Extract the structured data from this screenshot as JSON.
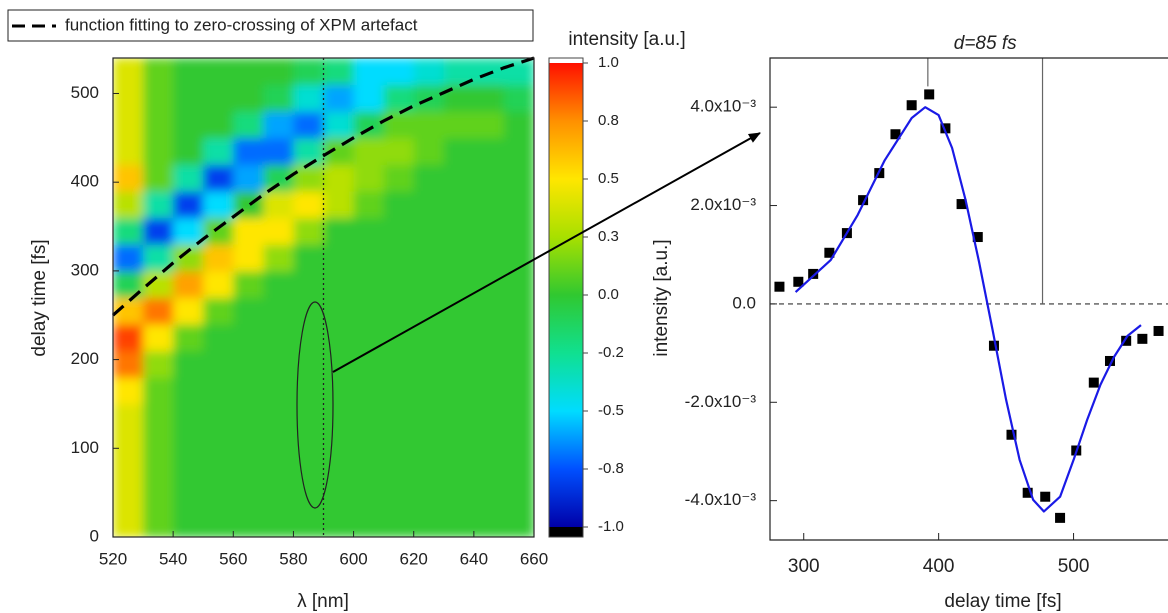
{
  "chart_data": [
    {
      "type": "heatmap",
      "xlabel": "λ [nm]",
      "ylabel": "delay time [fs]",
      "colorbar_title": "intensity [a.u.]",
      "xlim": [
        520,
        660
      ],
      "xticks": [
        520,
        540,
        560,
        580,
        600,
        620,
        640,
        660
      ],
      "ylim": [
        0,
        540
      ],
      "yticks": [
        0,
        100,
        200,
        300,
        400,
        500
      ],
      "xbins": [
        520,
        530,
        540,
        550,
        560,
        570,
        580,
        590,
        600,
        610,
        620,
        630,
        640,
        650,
        660
      ],
      "ybins": [
        0,
        30,
        60,
        90,
        120,
        150,
        180,
        210,
        240,
        270,
        300,
        330,
        360,
        390,
        420,
        450,
        480,
        510,
        540
      ],
      "z": [
        [
          0.4,
          0.1,
          0,
          0,
          0,
          0,
          0,
          0,
          0,
          0,
          0,
          0,
          0,
          0
        ],
        [
          0.4,
          0.1,
          0,
          0,
          0,
          0,
          0,
          0,
          0,
          0,
          0,
          0,
          0,
          0
        ],
        [
          0.4,
          0.1,
          0,
          0,
          0,
          0,
          0,
          0,
          0,
          0,
          0,
          0,
          0,
          0
        ],
        [
          0.4,
          0.1,
          0,
          0,
          0,
          0,
          0,
          0,
          0,
          0,
          0,
          0,
          0,
          0
        ],
        [
          0.4,
          0.1,
          0,
          0,
          0,
          0,
          0,
          0,
          0,
          0,
          0,
          0,
          0,
          0
        ],
        [
          0.5,
          0.1,
          0,
          0,
          0,
          0,
          0,
          0,
          0,
          0,
          0,
          0,
          0,
          0
        ],
        [
          0.8,
          0.2,
          0,
          0,
          0,
          0,
          0,
          0,
          0,
          0,
          0,
          0,
          0,
          0
        ],
        [
          0.9,
          0.5,
          0.1,
          0,
          0,
          0,
          0,
          0,
          0,
          0,
          0,
          0,
          0,
          0
        ],
        [
          0.6,
          0.8,
          0.5,
          0.1,
          0,
          0,
          0,
          0,
          0,
          0,
          0,
          0,
          0,
          0
        ],
        [
          -0.1,
          0.3,
          0.7,
          0.5,
          0.1,
          0,
          0,
          0,
          0,
          0,
          0,
          0,
          0,
          0
        ],
        [
          -0.7,
          -0.3,
          0.2,
          0.6,
          0.5,
          0.2,
          0,
          0,
          0,
          0,
          0,
          0,
          0,
          0
        ],
        [
          -0.2,
          -0.8,
          -0.5,
          0.1,
          0.5,
          0.5,
          0.2,
          0,
          0,
          0,
          0,
          0,
          0,
          0
        ],
        [
          0.3,
          -0.3,
          -0.8,
          -0.5,
          0,
          0.4,
          0.5,
          0.3,
          0.1,
          0,
          0,
          0,
          0,
          0
        ],
        [
          0.6,
          0.1,
          -0.3,
          -0.8,
          -0.6,
          -0.1,
          0.2,
          0.3,
          0.2,
          0.1,
          0,
          0,
          0,
          0
        ],
        [
          0.4,
          0.1,
          0,
          -0.3,
          -0.7,
          -0.7,
          -0.3,
          0.1,
          0.2,
          0.2,
          0.1,
          0,
          0,
          0
        ],
        [
          0.4,
          0.1,
          0,
          0,
          -0.2,
          -0.6,
          -0.7,
          -0.4,
          -0.1,
          0.1,
          0.1,
          0.1,
          0.1,
          0
        ],
        [
          0.4,
          0.1,
          0,
          0,
          0,
          -0.1,
          -0.4,
          -0.6,
          -0.5,
          -0.2,
          -0.1,
          0,
          0,
          -0.1
        ],
        [
          0.4,
          0.1,
          0,
          0,
          0,
          0,
          -0.1,
          -0.2,
          -0.5,
          -0.5,
          -0.4,
          -0.3,
          -0.3,
          -0.3
        ]
      ],
      "clim": [
        -1,
        1
      ],
      "colorscale": [
        {
          "value": -1,
          "color": "#0000a8"
        },
        {
          "value": -0.75,
          "color": "#0050ff"
        },
        {
          "value": -0.5,
          "color": "#00dcff"
        },
        {
          "value": -0.25,
          "color": "#10e090"
        },
        {
          "value": 0,
          "color": "#30c830"
        },
        {
          "value": 0.25,
          "color": "#a8e000"
        },
        {
          "value": 0.5,
          "color": "#ffe600"
        },
        {
          "value": 0.75,
          "color": "#ff9000"
        },
        {
          "value": 1,
          "color": "#ff1000"
        }
      ],
      "cticks": [
        {
          "value": 1,
          "label": "1.0"
        },
        {
          "value": 0.75,
          "label": "0.8"
        },
        {
          "value": 0.5,
          "label": "0.5"
        },
        {
          "value": 0.25,
          "label": "0.3"
        },
        {
          "value": 0,
          "label": "0.0"
        },
        {
          "value": -0.25,
          "label": "-0.2"
        },
        {
          "value": -0.5,
          "label": "-0.5"
        },
        {
          "value": -0.75,
          "label": "-0.8"
        },
        {
          "value": -1,
          "label": "-1.0"
        }
      ],
      "vline": 590,
      "series": [
        {
          "name": "function fitting to zero-crossing of XPM artefact",
          "color": "#000000",
          "style": "dashed",
          "x": [
            520,
            530,
            540,
            550,
            560,
            570,
            580,
            590,
            600,
            610,
            620,
            630,
            640,
            650,
            660
          ],
          "values": [
            250,
            280,
            309,
            336,
            361,
            386,
            409,
            430,
            450,
            469,
            486,
            501,
            516,
            529,
            540
          ]
        }
      ]
    },
    {
      "type": "scatter",
      "xlabel": "delay time [fs]",
      "ylabel": "intensity [a.u.]",
      "xlim": [
        275,
        570
      ],
      "xticks": [
        300,
        400,
        500
      ],
      "ylim": [
        -0.0048,
        0.005
      ],
      "yticks": [
        {
          "value": -0.004,
          "label": "-4.0x10⁻³"
        },
        {
          "value": -0.002,
          "label": "-2.0x10⁻³"
        },
        {
          "value": 0,
          "label": "0.0"
        },
        {
          "value": 0.002,
          "label": "2.0x10⁻³"
        },
        {
          "value": 0.004,
          "label": "4.0x10⁻³"
        }
      ],
      "hline": 0,
      "annotation": "d=85 fs",
      "bracket_x": [
        392,
        477
      ],
      "series": [
        {
          "marker": "square",
          "color": "#000000",
          "x": [
            282,
            296,
            307,
            319,
            332,
            344,
            356,
            368,
            380,
            393,
            405,
            417,
            429,
            441,
            454,
            466,
            479,
            490,
            502,
            515,
            527,
            539,
            551,
            563
          ],
          "values": [
            0.00035,
            0.00045,
            0.00061,
            0.00104,
            0.00144,
            0.00211,
            0.00266,
            0.00345,
            0.00404,
            0.00426,
            0.00357,
            0.00203,
            0.00136,
            -0.00085,
            -0.00266,
            -0.00384,
            -0.00392,
            -0.00435,
            -0.00298,
            -0.0016,
            -0.00116,
            -0.00075,
            -0.00071,
            -0.00055
          ]
        },
        {
          "type": "line",
          "color": "#1a1ae6",
          "x": [
            294,
            300,
            320,
            340,
            360,
            380,
            390,
            400,
            410,
            420,
            430,
            440,
            450,
            460,
            470,
            478,
            490,
            500,
            510,
            520,
            530,
            540,
            550
          ],
          "values": [
            0.00024,
            0.00039,
            0.00089,
            0.00181,
            0.00292,
            0.00378,
            0.004,
            0.00384,
            0.00317,
            0.00211,
            0.00085,
            -0.00053,
            -0.00195,
            -0.00317,
            -0.00398,
            -0.00422,
            -0.00392,
            -0.00317,
            -0.00236,
            -0.00164,
            -0.00108,
            -0.00065,
            -0.00043
          ]
        }
      ]
    }
  ]
}
